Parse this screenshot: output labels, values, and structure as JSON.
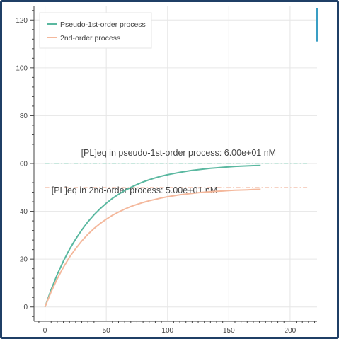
{
  "chart_data": {
    "type": "line",
    "title": "",
    "xlabel": "",
    "ylabel": "",
    "xlim": [
      -9,
      222
    ],
    "ylim": [
      -6,
      126
    ],
    "x_ticks": [
      0,
      50,
      100,
      150,
      200
    ],
    "y_ticks": [
      0,
      20,
      40,
      60,
      80,
      100,
      120
    ],
    "grid": true,
    "legend_position": "top-left",
    "series": [
      {
        "name": "Pseudo-1st-order process",
        "color": "#5ab8a0",
        "x": [
          0,
          5,
          10,
          15,
          20,
          25,
          30,
          35,
          40,
          45,
          50,
          55,
          60,
          65,
          70,
          75,
          80,
          85,
          90,
          95,
          100,
          105,
          110,
          115,
          120,
          125,
          130,
          135,
          140,
          145,
          150,
          155,
          160,
          165,
          170,
          176
        ],
        "y": [
          0,
          7.2,
          13.6,
          19.2,
          24.1,
          28.4,
          32.2,
          35.6,
          38.5,
          41.1,
          43.4,
          45.4,
          47.1,
          48.7,
          50.0,
          51.2,
          52.3,
          53.2,
          54.0,
          54.7,
          55.3,
          55.8,
          56.3,
          56.7,
          57.1,
          57.4,
          57.7,
          58.0,
          58.2,
          58.4,
          58.6,
          58.8,
          58.9,
          59.0,
          59.1,
          59.2
        ]
      },
      {
        "name": "2nd-order process",
        "color": "#f4b89c",
        "x": [
          0,
          5,
          10,
          15,
          20,
          25,
          30,
          35,
          40,
          45,
          50,
          55,
          60,
          65,
          70,
          75,
          80,
          85,
          90,
          95,
          100,
          105,
          110,
          115,
          120,
          125,
          130,
          135,
          140,
          145,
          150,
          155,
          160,
          165,
          170,
          176
        ],
        "y": [
          0,
          6.3,
          11.8,
          16.6,
          20.8,
          24.4,
          27.6,
          30.4,
          32.8,
          34.9,
          36.7,
          38.3,
          39.7,
          40.9,
          42.0,
          42.9,
          43.7,
          44.4,
          45.0,
          45.6,
          46.1,
          46.5,
          46.9,
          47.2,
          47.5,
          47.8,
          48.0,
          48.2,
          48.4,
          48.5,
          48.7,
          48.8,
          48.9,
          49.0,
          49.1,
          49.2
        ]
      }
    ],
    "reference_lines": [
      {
        "name": "pseudo-1st-order-equilibrium",
        "y": 60,
        "x_range": [
          0,
          215
        ],
        "color": "#a6d9cb",
        "style": "dash-dot",
        "label": "[PL]eq in pseudo-1st-order process: 6.00e+01 nM",
        "label_x": 109,
        "label_y": 63.2
      },
      {
        "name": "2nd-order-equilibrium",
        "y": 50,
        "x_range": [
          0,
          215
        ],
        "color": "#f4c4b0",
        "style": "dash-dot",
        "label": "[PL]eq in 2nd-order process: 5.00e+01 nM",
        "label_x": 73,
        "label_y": 47.5
      }
    ],
    "marker": {
      "name": "vertical-marker",
      "x": 222,
      "y_range": [
        111,
        125
      ],
      "color": "#3a9ec4"
    }
  }
}
